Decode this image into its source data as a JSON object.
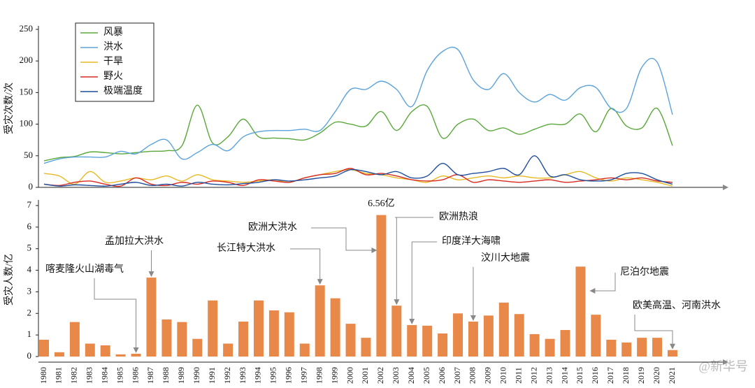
{
  "chart_data": [
    {
      "type": "line",
      "y_label": "受灾次数/次",
      "ylim": [
        0,
        250
      ],
      "yticks": [
        0,
        50,
        100,
        150,
        200,
        250
      ],
      "legend": "upper-left",
      "series": [
        {
          "name": "风暴",
          "color": "#5aa83a",
          "values": [
            42,
            47,
            49,
            56,
            55,
            53,
            55,
            57,
            58,
            66,
            130,
            70,
            80,
            108,
            80,
            78,
            77,
            75,
            86,
            103,
            100,
            97,
            120,
            90,
            120,
            128,
            78,
            100,
            108,
            90,
            94,
            84,
            92,
            100,
            100,
            116,
            88,
            125,
            97,
            94,
            125,
            66
          ]
        },
        {
          "name": "洪水",
          "color": "#5ba3dc",
          "values": [
            38,
            45,
            48,
            48,
            48,
            57,
            53,
            68,
            75,
            45,
            55,
            68,
            58,
            80,
            88,
            90,
            90,
            92,
            90,
            120,
            155,
            155,
            168,
            155,
            128,
            185,
            215,
            218,
            170,
            155,
            180,
            150,
            135,
            147,
            138,
            158,
            158,
            125,
            125,
            190,
            198,
            115
          ]
        },
        {
          "name": "干旱",
          "color": "#e8b923",
          "values": [
            22,
            18,
            5,
            25,
            8,
            10,
            15,
            12,
            18,
            10,
            20,
            12,
            10,
            8,
            10,
            12,
            8,
            15,
            20,
            25,
            28,
            22,
            20,
            15,
            12,
            8,
            18,
            12,
            15,
            18,
            15,
            18,
            15,
            15,
            20,
            25,
            15,
            10,
            15,
            12,
            8,
            2
          ]
        },
        {
          "name": "野火",
          "color": "#d9281e",
          "values": [
            5,
            3,
            8,
            10,
            5,
            2,
            15,
            5,
            3,
            8,
            5,
            10,
            8,
            3,
            12,
            10,
            8,
            15,
            20,
            22,
            30,
            20,
            22,
            18,
            12,
            10,
            12,
            20,
            8,
            12,
            10,
            8,
            10,
            12,
            8,
            10,
            12,
            15,
            12,
            15,
            10,
            8
          ]
        },
        {
          "name": "极端温度",
          "color": "#1f4e9c",
          "values": [
            5,
            2,
            4,
            3,
            2,
            5,
            8,
            3,
            5,
            2,
            8,
            5,
            4,
            6,
            8,
            12,
            10,
            12,
            15,
            18,
            28,
            25,
            20,
            25,
            15,
            18,
            38,
            20,
            22,
            25,
            30,
            20,
            50,
            18,
            20,
            12,
            10,
            12,
            22,
            22,
            12,
            5
          ]
        }
      ]
    },
    {
      "type": "bar",
      "y_label": "受灾人数/亿",
      "ylim": [
        0,
        7
      ],
      "yticks": [
        0,
        1,
        2,
        3,
        4,
        5,
        6,
        7
      ],
      "color": "#e8894a",
      "categories": [
        "1980",
        "1981",
        "1982",
        "1983",
        "1984",
        "1985",
        "1986",
        "1987",
        "1988",
        "1989",
        "1990",
        "1991",
        "1992",
        "1993",
        "1994",
        "1995",
        "1996",
        "1997",
        "1998",
        "1999",
        "2000",
        "2001",
        "2002",
        "2003",
        "2004",
        "2005",
        "2006",
        "2007",
        "2008",
        "2009",
        "2010",
        "2011",
        "2012",
        "2013",
        "2014",
        "2015",
        "2016",
        "2017",
        "2018",
        "2019",
        "2020",
        "2021"
      ],
      "values": [
        0.78,
        0.2,
        1.6,
        0.6,
        0.52,
        0.1,
        0.13,
        3.66,
        1.72,
        1.6,
        0.82,
        2.6,
        0.6,
        1.62,
        2.6,
        2.14,
        2.05,
        0.6,
        3.3,
        2.7,
        1.52,
        0.87,
        6.56,
        2.36,
        1.46,
        1.43,
        1.07,
        2.0,
        1.62,
        1.9,
        2.5,
        1.97,
        1.04,
        0.82,
        1.23,
        4.17,
        1.94,
        0.78,
        0.65,
        0.87,
        0.87,
        0.3
      ],
      "value_labels": [
        null,
        null,
        null,
        null,
        null,
        null,
        null,
        null,
        null,
        null,
        null,
        null,
        null,
        null,
        null,
        null,
        null,
        null,
        null,
        null,
        null,
        null,
        "6.56亿",
        null,
        null,
        null,
        null,
        null,
        null,
        null,
        null,
        null,
        null,
        null,
        null,
        null,
        null,
        null,
        null,
        null,
        null,
        null
      ],
      "annotations": [
        {
          "text": "喀麦隆火山湖毒气",
          "category": "1986"
        },
        {
          "text": "孟加拉大洪水",
          "category": "1987"
        },
        {
          "text": "长江特大洪水",
          "category": "1998"
        },
        {
          "text": "欧洲大洪水",
          "category": "2002"
        },
        {
          "text": "欧洲热浪",
          "category": "2003"
        },
        {
          "text": "印度洋大海啸",
          "category": "2004"
        },
        {
          "text": "汶川大地震",
          "category": "2008"
        },
        {
          "text": "尼泊尔地震",
          "category": "2015"
        },
        {
          "text": "欧美高温、河南洪水",
          "category": "2021"
        }
      ]
    }
  ],
  "watermark": "@新华号"
}
